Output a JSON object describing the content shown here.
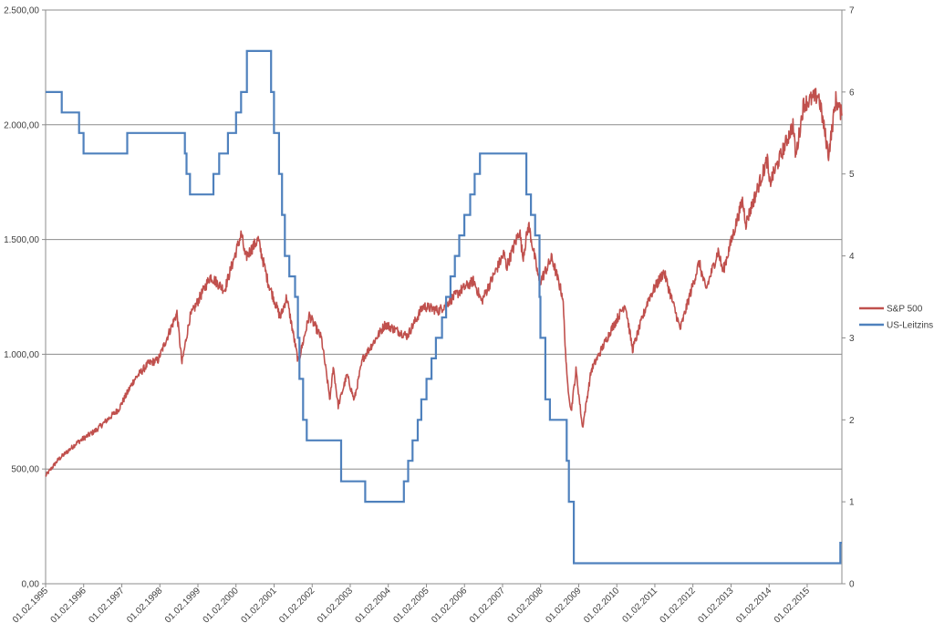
{
  "chart_data": {
    "type": "line",
    "title": "",
    "xlabel": "",
    "ylabel_left": "",
    "ylabel_right": "",
    "grid": true,
    "legend_position": "right",
    "x_range": [
      "1995-02-01",
      "2015-12-31"
    ],
    "x_tick_labels": [
      "01.02.1995",
      "01.02.1996",
      "01.02.1997",
      "01.02.1998",
      "01.02.1999",
      "01.02.2000",
      "01.02.2001",
      "01.02.2002",
      "01.02.2003",
      "01.02.2004",
      "01.02.2005",
      "01.02.2006",
      "01.02.2007",
      "01.02.2008",
      "01.02.2009",
      "01.02.2010",
      "01.02.2011",
      "01.02.2012",
      "01.02.2013",
      "01.02.2014",
      "01.02.2015"
    ],
    "y_left_range": [
      0,
      2500
    ],
    "y_left_tick_labels": [
      "0,00",
      "500,00",
      "1.000,00",
      "1.500,00",
      "2.000,00",
      "2.500,00"
    ],
    "y_right_range": [
      0,
      7
    ],
    "y_right_tick_labels": [
      "0",
      "1",
      "2",
      "3",
      "4",
      "5",
      "6",
      "7"
    ],
    "series": [
      {
        "name": "S&P 500",
        "axis": "left",
        "color": "#C0504D",
        "x": [
          "1995-02-01",
          "1995-06-01",
          "1995-12-01",
          "1996-06-01",
          "1997-01-01",
          "1997-06-01",
          "1997-10-15",
          "1998-01-15",
          "1998-07-15",
          "1998-09-01",
          "1998-11-15",
          "1999-06-01",
          "1999-10-15",
          "2000-03-24",
          "2000-05-01",
          "2000-09-01",
          "2000-12-01",
          "2001-04-01",
          "2001-06-01",
          "2001-09-21",
          "2002-01-04",
          "2002-05-01",
          "2002-07-23",
          "2002-08-22",
          "2002-10-09",
          "2003-01-01",
          "2003-03-11",
          "2003-06-01",
          "2004-01-01",
          "2004-08-01",
          "2005-01-01",
          "2005-06-01",
          "2006-01-01",
          "2006-05-01",
          "2006-07-15",
          "2007-02-15",
          "2007-03-12",
          "2007-07-15",
          "2007-08-15",
          "2007-10-09",
          "2008-01-22",
          "2008-05-19",
          "2008-09-01",
          "2008-10-10",
          "2008-11-20",
          "2009-01-06",
          "2009-03-09",
          "2009-06-01",
          "2009-12-01",
          "2010-04-23",
          "2010-07-02",
          "2010-12-01",
          "2011-04-29",
          "2011-10-03",
          "2012-04-01",
          "2012-06-04",
          "2012-10-01",
          "2012-11-15",
          "2013-05-21",
          "2013-06-24",
          "2014-01-15",
          "2014-02-03",
          "2014-09-18",
          "2014-10-15",
          "2014-12-29",
          "2015-05-21",
          "2015-08-25",
          "2015-11-03",
          "2015-12-31"
        ],
        "values": [
          470,
          540,
          615,
          670,
          760,
          890,
          960,
          975,
          1180,
          960,
          1160,
          1340,
          1280,
          1527,
          1420,
          1500,
          1320,
          1160,
          1250,
          965,
          1170,
          1070,
          800,
          950,
          775,
          910,
          800,
          980,
          1130,
          1080,
          1210,
          1190,
          1280,
          1320,
          1230,
          1440,
          1380,
          1540,
          1420,
          1565,
          1310,
          1420,
          1250,
          900,
          750,
          930,
          680,
          930,
          1100,
          1220,
          1020,
          1240,
          1360,
          1110,
          1400,
          1280,
          1450,
          1360,
          1670,
          1570,
          1850,
          1740,
          2000,
          1860,
          2090,
          2130,
          1870,
          2110,
          2040
        ]
      },
      {
        "name": "US-Leitzins",
        "axis": "right",
        "color": "#4F81BD",
        "x": [
          "1995-02-01",
          "1995-07-06",
          "1995-12-19",
          "1996-01-31",
          "1997-03-25",
          "1998-09-29",
          "1998-10-15",
          "1998-11-17",
          "1999-06-30",
          "1999-08-24",
          "1999-11-16",
          "2000-02-02",
          "2000-03-21",
          "2000-05-16",
          "2001-01-03",
          "2001-01-31",
          "2001-03-20",
          "2001-04-18",
          "2001-05-15",
          "2001-06-27",
          "2001-08-21",
          "2001-09-17",
          "2001-10-02",
          "2001-11-06",
          "2001-12-11",
          "2002-11-06",
          "2003-06-25",
          "2004-06-30",
          "2004-08-10",
          "2004-09-21",
          "2004-11-10",
          "2004-12-14",
          "2005-02-02",
          "2005-03-22",
          "2005-05-03",
          "2005-06-30",
          "2005-08-09",
          "2005-09-20",
          "2005-11-01",
          "2005-12-13",
          "2006-01-31",
          "2006-03-28",
          "2006-05-10",
          "2006-06-29",
          "2007-09-18",
          "2007-10-31",
          "2007-12-11",
          "2008-01-22",
          "2008-01-30",
          "2008-03-18",
          "2008-04-30",
          "2008-10-08",
          "2008-10-29",
          "2008-12-16",
          "2015-12-16",
          "2015-12-31"
        ],
        "values": [
          6.0,
          5.75,
          5.5,
          5.25,
          5.5,
          5.25,
          5.0,
          4.75,
          5.0,
          5.25,
          5.5,
          5.75,
          6.0,
          6.5,
          6.0,
          5.5,
          5.0,
          4.5,
          4.0,
          3.75,
          3.5,
          3.0,
          2.5,
          2.0,
          1.75,
          1.25,
          1.0,
          1.25,
          1.5,
          1.75,
          2.0,
          2.25,
          2.5,
          2.75,
          3.0,
          3.25,
          3.5,
          3.75,
          4.0,
          4.25,
          4.5,
          4.75,
          5.0,
          5.25,
          4.75,
          4.5,
          4.25,
          3.5,
          3.0,
          2.25,
          2.0,
          1.5,
          1.0,
          0.25,
          0.5,
          0.5
        ]
      }
    ]
  }
}
